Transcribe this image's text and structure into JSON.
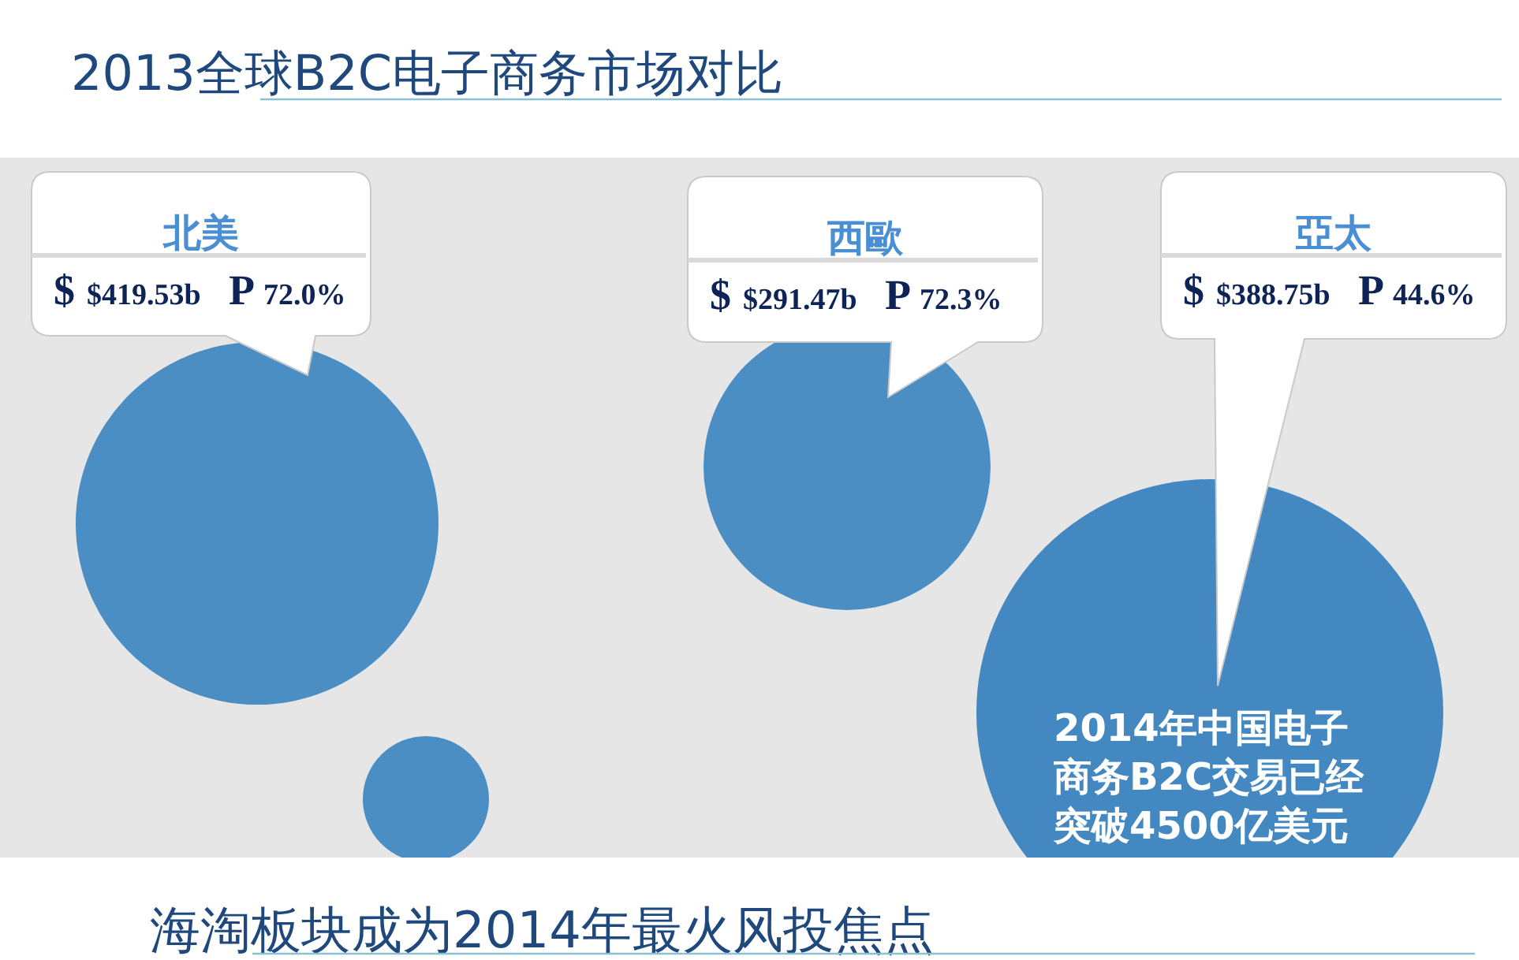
{
  "chart_data": {
    "type": "other",
    "title": "2013全球B2C电子商务市场对比",
    "categories": [
      "北美",
      "西歐",
      "亞太",
      null
    ],
    "series": [
      {
        "name": "$",
        "values": [
          419.53,
          291.47,
          388.75,
          null
        ],
        "value_labels": [
          "$419.53b",
          "$291.47b",
          "$388.75b",
          null
        ]
      },
      {
        "name": "P",
        "values": [
          72.0,
          72.3,
          44.6,
          null
        ],
        "value_labels": [
          "72.0%",
          "72.3%",
          "44.6%",
          null
        ]
      }
    ],
    "colors": [
      "#4a8ec4",
      "#4a8ec4",
      "#4388c1",
      "#4a8ec4"
    ],
    "annotations": [
      "2014年中国电子商务B2C交易已经突破4500亿美元",
      "海淘板块成为2014年最火风投焦点"
    ]
  }
}
